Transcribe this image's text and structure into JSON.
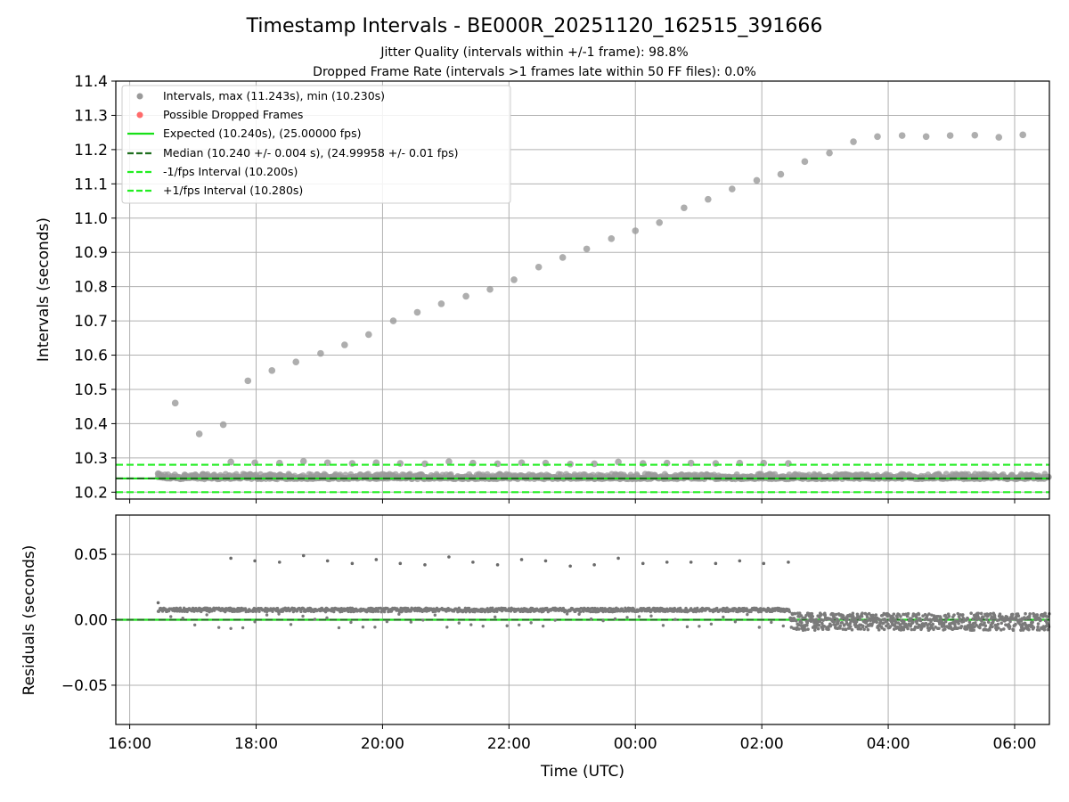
{
  "chart_data": [
    {
      "type": "scatter",
      "panel": "top",
      "title": "Timestamp Intervals - BE000R_20251120_162515_391666",
      "subtitle_lines": [
        "Jitter Quality (intervals within +/-1 frame): 98.8%",
        "Dropped Frame Rate (intervals >1 frames late within 50 FF files): 0.0%"
      ],
      "xlabel": "",
      "ylabel": "Intervals (seconds)",
      "xlim_hours": [
        15.78,
        30.55
      ],
      "ylim": [
        10.18,
        11.4
      ],
      "yticks": [
        10.2,
        10.3,
        10.4,
        10.5,
        10.6,
        10.7,
        10.8,
        10.9,
        11.0,
        11.1,
        11.2,
        11.3,
        11.4
      ],
      "ytick_labels": [
        "10.2",
        "10.3",
        "10.4",
        "10.5",
        "10.6",
        "10.7",
        "10.8",
        "10.9",
        "11.0",
        "11.1",
        "11.2",
        "11.3",
        "11.4"
      ],
      "grid": true,
      "legend_position": "upper-left",
      "legend": [
        {
          "label": "Intervals, max (11.243s), min (10.230s)",
          "kind": "marker",
          "color": "#9a9a9a"
        },
        {
          "label": "Possible Dropped Frames",
          "kind": "marker",
          "color": "#ff6b6b"
        },
        {
          "label": "Expected (10.240s), (25.00000 fps)",
          "kind": "solid",
          "color": "#18e018"
        },
        {
          "label": "Median (10.240 +/- 0.004 s), (24.99958 +/- 0.01 fps)",
          "kind": "dashed",
          "color": "#1f6e1f"
        },
        {
          "label": "-1/fps Interval (10.200s)",
          "kind": "dashed",
          "color": "#22ee22"
        },
        {
          "label": "+1/fps Interval (10.280s)",
          "kind": "dashed",
          "color": "#22ee22"
        }
      ],
      "reference_lines": [
        {
          "name": "expected",
          "y": 10.24,
          "style": "solid",
          "color": "#18e018"
        },
        {
          "name": "median",
          "y": 10.24,
          "style": "dashed",
          "color": "#1f6e1f"
        },
        {
          "name": "minus-1-fps",
          "y": 10.2,
          "style": "dashed",
          "color": "#22ee22"
        },
        {
          "name": "plus-1-fps",
          "y": 10.28,
          "style": "dashed",
          "color": "#22ee22"
        }
      ],
      "outlier_series": {
        "name": "Long intervals",
        "x_hours": [
          16.72,
          17.1,
          17.48,
          17.87,
          18.25,
          18.63,
          19.02,
          19.4,
          19.78,
          20.17,
          20.55,
          20.93,
          21.32,
          21.7,
          22.08,
          22.47,
          22.85,
          23.23,
          23.62,
          24.0,
          24.38,
          24.77,
          25.15,
          25.53,
          25.92,
          26.3,
          26.68,
          27.07,
          27.45,
          27.83,
          28.22,
          28.6,
          28.98,
          29.37,
          29.75,
          30.13
        ],
        "values": [
          10.46,
          10.37,
          10.397,
          10.525,
          10.555,
          10.58,
          10.605,
          10.63,
          10.66,
          10.7,
          10.725,
          10.75,
          10.772,
          10.792,
          10.82,
          10.857,
          10.885,
          10.91,
          10.94,
          10.963,
          10.987,
          11.03,
          11.055,
          11.085,
          11.11,
          11.128,
          11.165,
          11.19,
          11.223,
          11.238,
          11.241,
          11.238,
          11.241,
          11.242,
          11.236,
          11.243
        ]
      },
      "secondary_series": {
        "name": "Jitter-late intervals",
        "x_hours": [
          16.45,
          17.6,
          17.98,
          18.37,
          18.75,
          19.13,
          19.52,
          19.9,
          20.28,
          20.67,
          21.05,
          21.43,
          21.82,
          22.2,
          22.58,
          22.97,
          23.35,
          23.73,
          24.12,
          24.5,
          24.88,
          25.27,
          25.65,
          26.03,
          26.42
        ],
        "values": [
          10.254,
          10.288,
          10.286,
          10.285,
          10.29,
          10.286,
          10.284,
          10.286,
          10.284,
          10.283,
          10.289,
          10.285,
          10.283,
          10.286,
          10.285,
          10.282,
          10.283,
          10.288,
          10.284,
          10.285,
          10.285,
          10.284,
          10.285,
          10.285,
          10.284
        ]
      },
      "dense_series": {
        "name": "Intervals (dense)",
        "x_range_hours": [
          16.45,
          30.55
        ],
        "baseline": 10.24,
        "value_range": [
          10.236,
          10.256
        ]
      }
    },
    {
      "type": "scatter",
      "panel": "bottom",
      "xlabel": "Time (UTC)",
      "ylabel": "Residuals (seconds)",
      "xlim_hours": [
        15.78,
        30.55
      ],
      "ylim": [
        -0.08,
        0.08
      ],
      "yticks": [
        -0.05,
        0.0,
        0.05
      ],
      "ytick_labels": [
        "−0.05",
        "0.00",
        "0.05"
      ],
      "xticks_hours": [
        16,
        18,
        20,
        22,
        24,
        26,
        28,
        30
      ],
      "xtick_labels": [
        "16:00",
        "18:00",
        "20:00",
        "22:00",
        "00:00",
        "02:00",
        "04:00",
        "06:00"
      ],
      "grid": true,
      "reference_line": {
        "y": 0.0,
        "style": "dashed",
        "color": "#1f6e1f"
      },
      "high_series": {
        "name": "Large residuals",
        "x_hours": [
          16.45,
          17.6,
          17.98,
          18.37,
          18.75,
          19.13,
          19.52,
          19.9,
          20.28,
          20.67,
          21.05,
          21.43,
          21.82,
          22.2,
          22.58,
          22.97,
          23.35,
          23.73,
          24.12,
          24.5,
          24.88,
          25.27,
          25.65,
          26.03,
          26.42
        ],
        "values": [
          0.013,
          0.047,
          0.045,
          0.044,
          0.049,
          0.045,
          0.043,
          0.046,
          0.043,
          0.042,
          0.048,
          0.044,
          0.042,
          0.046,
          0.045,
          0.041,
          0.042,
          0.047,
          0.043,
          0.044,
          0.044,
          0.043,
          0.045,
          0.043,
          0.044
        ]
      },
      "dense_series": {
        "name": "Residuals (dense)",
        "early_range_hours": [
          16.45,
          26.45
        ],
        "early_value_band": [
          0.006,
          0.009
        ],
        "late_range_hours": [
          26.45,
          30.55
        ],
        "late_value_band": [
          -0.008,
          0.005
        ]
      }
    }
  ]
}
